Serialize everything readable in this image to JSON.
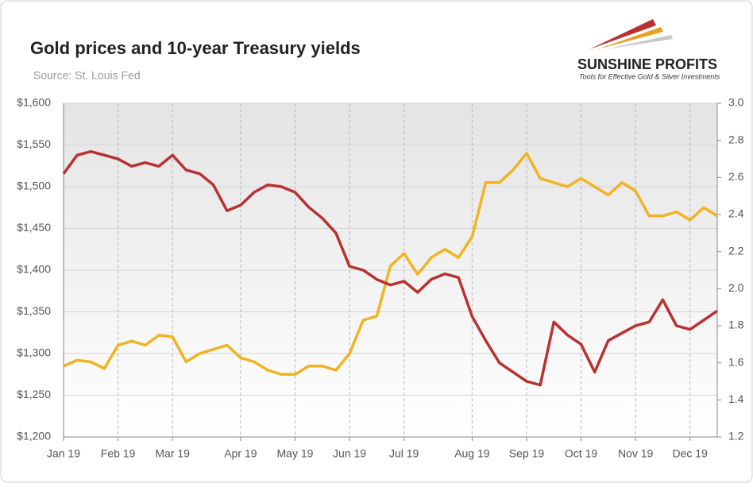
{
  "chart_data": {
    "type": "line",
    "title": "Gold prices and 10-year Treasury yields",
    "subtitle": "Source: St. Louis Fed",
    "logo": {
      "name": "SUNSHINE PROFITS",
      "tagline": "Tools for Effective Gold & Silver Investments"
    },
    "categories": [
      "Jan 19",
      null,
      null,
      null,
      "Feb 19",
      null,
      null,
      null,
      "Mar 19",
      null,
      null,
      null,
      null,
      "Apr 19",
      null,
      null,
      null,
      "May 19",
      null,
      null,
      null,
      "Jun 19",
      null,
      null,
      null,
      "Jul 19",
      null,
      null,
      null,
      null,
      "Aug 19",
      null,
      null,
      null,
      "Sep 19",
      null,
      null,
      null,
      "Oct 19",
      null,
      null,
      null,
      "Nov 19",
      null,
      null,
      null,
      "Dec 19",
      null,
      null
    ],
    "series": [
      {
        "color": "#f0b323",
        "values": [
          1285,
          1292,
          1290,
          1282,
          1310,
          1315,
          1310,
          1322,
          1320,
          1290,
          1300,
          1305,
          1310,
          1295,
          1290,
          1280,
          1275,
          1275,
          1285,
          1285,
          1280,
          1300,
          1340,
          1345,
          1405,
          1420,
          1395,
          1415,
          1425,
          1415,
          1440,
          1505,
          1505,
          1520,
          1540,
          1510,
          1505,
          1500,
          1510,
          1500,
          1490,
          1505,
          1495,
          1465,
          1465,
          1470,
          1460,
          1475,
          1465
        ]
      },
      {
        "color": "#b83232",
        "axis": "y2",
        "values": [
          2.62,
          2.72,
          2.74,
          2.72,
          2.7,
          2.66,
          2.68,
          2.66,
          2.72,
          2.64,
          2.62,
          2.56,
          2.42,
          2.45,
          2.52,
          2.56,
          2.55,
          2.52,
          2.44,
          2.38,
          2.3,
          2.12,
          2.1,
          2.05,
          2.02,
          2.04,
          1.98,
          2.05,
          2.08,
          2.06,
          1.85,
          1.72,
          1.6,
          1.55,
          1.5,
          1.48,
          1.82,
          1.75,
          1.7,
          1.55,
          1.72,
          1.76,
          1.8,
          1.82,
          1.94,
          1.8,
          1.78,
          1.83,
          1.88
        ]
      }
    ],
    "ylim": [
      1200,
      1600
    ],
    "yticks": [
      {
        "value": 1200,
        "label": "$1,200"
      },
      {
        "value": 1250,
        "label": "$1,250"
      },
      {
        "value": 1300,
        "label": "$1,300"
      },
      {
        "value": 1350,
        "label": "$1,350"
      },
      {
        "value": 1400,
        "label": "$1,400"
      },
      {
        "value": 1450,
        "label": "$1,450"
      },
      {
        "value": 1500,
        "label": "$1,500"
      },
      {
        "value": 1550,
        "label": "$1,550"
      },
      {
        "value": 1600,
        "label": "$1,600"
      }
    ],
    "y2lim": [
      1.2,
      3.0
    ],
    "y2ticks": [
      1.2,
      1.4,
      1.6,
      1.8,
      {
        "value": 2,
        "label": "2.0"
      },
      2.2,
      2.4,
      2.6,
      2.8,
      {
        "value": 3,
        "label": "3.0"
      }
    ],
    "grid": true
  }
}
